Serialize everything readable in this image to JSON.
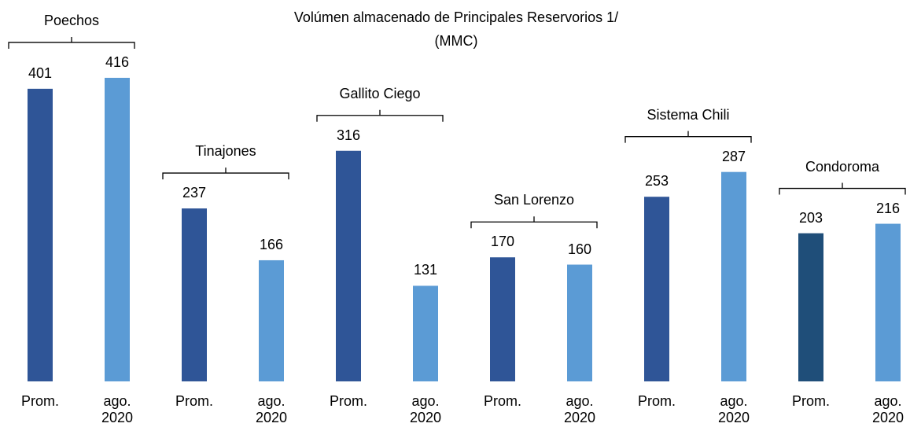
{
  "chart_data": {
    "type": "bar",
    "title": "Volúmen almacenado de Principales Reservorios 1/",
    "subtitle": "(MMC)",
    "categories": [
      "Poechos",
      "Tinajones",
      "Gallito Ciego",
      "San Lorenzo",
      "Sistema Chili",
      "Condoroma"
    ],
    "series": [
      {
        "name": "Prom.",
        "color": "#2F5597",
        "colors": [
          "#2F5597",
          "#2F5597",
          "#2F5597",
          "#2F5597",
          "#2F5597",
          "#1F4E79"
        ],
        "values": [
          401,
          237,
          316,
          170,
          253,
          203
        ]
      },
      {
        "name": "ago. 2020",
        "color": "#5B9BD5",
        "values": [
          416,
          166,
          131,
          160,
          287,
          216
        ]
      }
    ]
  }
}
